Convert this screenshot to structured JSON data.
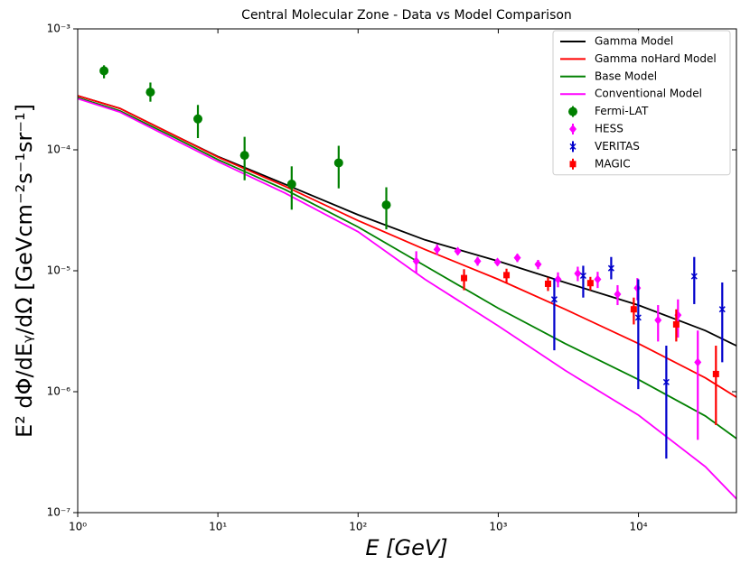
{
  "chart_data": {
    "type": "line",
    "title": "Central Molecular Zone - Data vs Model Comparison",
    "x_label": "E [GeV]",
    "y_label": "E² dΦ/dEᵧ/dΩ [GeVcm⁻²s⁻¹sr⁻¹]",
    "xscale": "log",
    "yscale": "log",
    "xlim": [
      1,
      50000
    ],
    "ylim": [
      1e-07,
      0.001
    ],
    "xticks": [
      {
        "value": 1,
        "label": "10⁰"
      },
      {
        "value": 10,
        "label": "10¹"
      },
      {
        "value": 100,
        "label": "10²"
      },
      {
        "value": 1000,
        "label": "10³"
      },
      {
        "value": 10000,
        "label": "10⁴"
      }
    ],
    "yticks": [
      {
        "value": 1e-07,
        "label": "10⁻⁷"
      },
      {
        "value": 1e-06,
        "label": "10⁻⁶"
      },
      {
        "value": 1e-05,
        "label": "10⁻⁵"
      },
      {
        "value": 0.0001,
        "label": "10⁻⁴"
      },
      {
        "value": 0.001,
        "label": "10⁻³"
      }
    ],
    "legend": "upper right",
    "series": [
      {
        "name": "Gamma Model",
        "color": "#000000",
        "marker": "none",
        "x": [
          1,
          2,
          5,
          10,
          30,
          100,
          300,
          1000,
          3000,
          10000,
          30000,
          50000
        ],
        "values": [
          0.00028,
          0.00022,
          0.00013,
          8.8e-05,
          5.2e-05,
          2.9e-05,
          1.8e-05,
          1.2e-05,
          8e-06,
          5.2e-06,
          3.2e-06,
          2.4e-06
        ]
      },
      {
        "name": "Gamma noHard Model",
        "color": "#ff0000",
        "marker": "none",
        "x": [
          1,
          2,
          5,
          10,
          30,
          100,
          300,
          1000,
          3000,
          10000,
          30000,
          50000
        ],
        "values": [
          0.00028,
          0.00022,
          0.00013,
          8.7e-05,
          5e-05,
          2.6e-05,
          1.5e-05,
          8.5e-06,
          4.8e-06,
          2.5e-06,
          1.3e-06,
          9e-07
        ]
      },
      {
        "name": "Base Model",
        "color": "#008000",
        "marker": "none",
        "x": [
          1,
          2,
          5,
          10,
          30,
          100,
          300,
          1000,
          3000,
          10000,
          30000,
          50000
        ],
        "values": [
          0.00027,
          0.00021,
          0.000125,
          8.3e-05,
          4.7e-05,
          2.3e-05,
          1.1e-05,
          4.9e-06,
          2.5e-06,
          1.26e-06,
          6.3e-07,
          4.1e-07
        ]
      },
      {
        "name": "Conventional Model",
        "color": "#ff00ff",
        "marker": "none",
        "x": [
          1,
          2,
          5,
          10,
          30,
          100,
          300,
          1000,
          3000,
          10000,
          30000,
          50000
        ],
        "values": [
          0.000265,
          0.000205,
          0.00012,
          8e-05,
          4.4e-05,
          2.1e-05,
          8.5e-06,
          3.5e-06,
          1.5e-06,
          6.4e-07,
          2.4e-07,
          1.3e-07
        ]
      },
      {
        "name": "Fermi-LAT",
        "color": "#008000",
        "marker": "o",
        "x": [
          1.54,
          3.3,
          7.2,
          15.5,
          33.6,
          72.7,
          159
        ],
        "values": [
          0.00045,
          0.0003,
          0.00018,
          9e-05,
          5.2e-05,
          7.8e-05,
          3.5e-05
        ],
        "yerr_minus": [
          6e-05,
          5e-05,
          5.5e-05,
          3.4e-05,
          2e-05,
          3e-05,
          1.3e-05
        ],
        "yerr_plus": [
          5e-05,
          6e-05,
          5.5e-05,
          3.8e-05,
          2.1e-05,
          3e-05,
          1.4e-05
        ]
      },
      {
        "name": "HESS",
        "color": "#ff00ff",
        "marker": "D",
        "x": [
          260,
          366,
          514,
          712,
          987,
          1368,
          1923,
          2666,
          3690,
          5117,
          7096,
          9820,
          13800,
          19140,
          26500
        ],
        "values": [
          1.2e-05,
          1.5e-05,
          1.45e-05,
          1.2e-05,
          1.18e-05,
          1.28e-05,
          1.13e-05,
          8.5e-06,
          9.5e-06,
          8.5e-06,
          6.4e-06,
          7.2e-06,
          3.9e-06,
          4.3e-06,
          1.75e-06
        ],
        "yerr_minus": [
          2.5e-06,
          1.5e-06,
          1e-06,
          1e-06,
          8e-07,
          1e-06,
          1e-06,
          1.2e-06,
          1.3e-06,
          1.3e-06,
          1.2e-06,
          1.5e-06,
          1.3e-06,
          1.5e-06,
          1.35e-06
        ],
        "yerr_plus": [
          2.5e-06,
          1.5e-06,
          1e-06,
          1e-06,
          8e-07,
          1e-06,
          1e-06,
          1.2e-06,
          1.3e-06,
          1.3e-06,
          1.2e-06,
          1.5e-06,
          1.3e-06,
          1.5e-06,
          1.45e-06
        ]
      },
      {
        "name": "VERITAS",
        "color": "#0000cc",
        "marker": "x",
        "x": [
          2510,
          4036,
          6390,
          9970,
          15800,
          25000,
          39600
        ],
        "values": [
          5.8e-06,
          9.1e-06,
          1.05e-05,
          4.1e-06,
          1.2e-06,
          9e-06,
          4.8e-06
        ],
        "yerr_minus": [
          3.6e-06,
          3.1e-06,
          2e-06,
          3.05e-06,
          9.2e-07,
          3.7e-06,
          3.05e-06
        ],
        "yerr_plus": [
          2.8e-06,
          1.9e-06,
          2.5e-06,
          4.4e-06,
          1.2e-06,
          4e-06,
          3.2e-06
        ]
      },
      {
        "name": "MAGIC",
        "color": "#ff0000",
        "marker": "s",
        "x": [
          570,
          1145,
          2264,
          4541,
          9260,
          18600,
          35700
        ],
        "values": [
          8.7e-06,
          9.2e-06,
          7.8e-06,
          7.9e-06,
          4.8e-06,
          3.6e-06,
          1.4e-06
        ],
        "yerr_minus": [
          1.8e-06,
          1.2e-06,
          1e-06,
          1e-06,
          1.2e-06,
          1e-06,
          8.7e-07
        ],
        "yerr_plus": [
          1.6e-06,
          1.2e-06,
          1e-06,
          1e-06,
          1.2e-06,
          1.2e-06,
          1e-06
        ]
      }
    ]
  }
}
